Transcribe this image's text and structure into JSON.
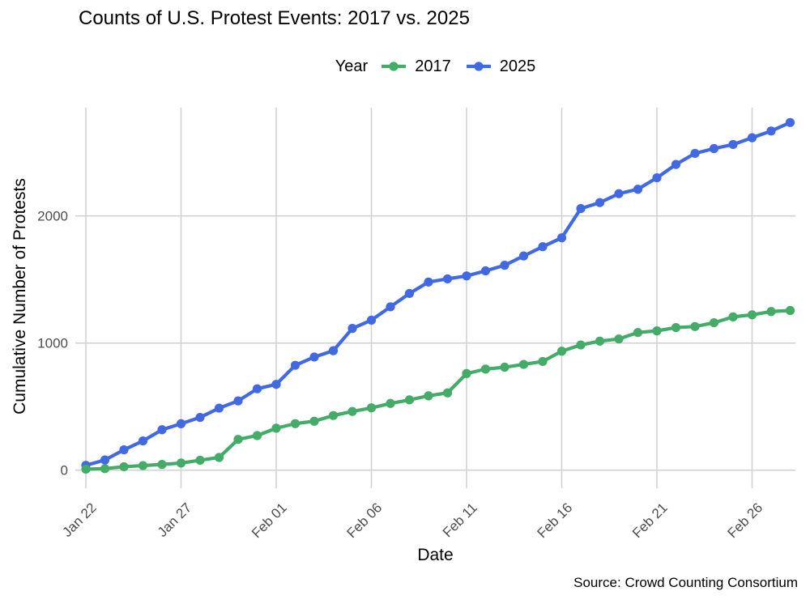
{
  "figure": {
    "title": "Counts of U.S. Protest Events: 2017 vs. 2025",
    "legend_title": "Year",
    "xlabel": "Date",
    "ylabel": "Cumulative Number of Protests",
    "caption": "Source: Crowd Counting Consortium"
  },
  "colors": {
    "series_2017": "#44ab68",
    "series_2025": "#4169e1",
    "gridline": "#d2d2d2",
    "tick_text": "#4d4d4d",
    "background": "#ffffff"
  },
  "chart_data": {
    "type": "line",
    "title": "Counts of U.S. Protest Events: 2017 vs. 2025",
    "xlabel": "Date",
    "ylabel": "Cumulative Number of Protests",
    "caption": "Source: Crowd Counting Consortium",
    "legend_title": "Year",
    "legend_position": "top",
    "grid": true,
    "points_on_line": true,
    "x": [
      "Jan 22",
      "Jan 23",
      "Jan 24",
      "Jan 25",
      "Jan 26",
      "Jan 27",
      "Jan 28",
      "Jan 29",
      "Jan 30",
      "Jan 31",
      "Feb 01",
      "Feb 02",
      "Feb 03",
      "Feb 04",
      "Feb 05",
      "Feb 06",
      "Feb 07",
      "Feb 08",
      "Feb 09",
      "Feb 10",
      "Feb 11",
      "Feb 12",
      "Feb 13",
      "Feb 14",
      "Feb 15",
      "Feb 16",
      "Feb 17",
      "Feb 18",
      "Feb 19",
      "Feb 20",
      "Feb 21",
      "Feb 22",
      "Feb 23",
      "Feb 24",
      "Feb 25",
      "Feb 26",
      "Feb 27",
      "Feb 28"
    ],
    "x_tick_labels": [
      "Jan 22",
      "Jan 27",
      "Feb 01",
      "Feb 06",
      "Feb 11",
      "Feb 16",
      "Feb 21",
      "Feb 26"
    ],
    "x_tick_indices": [
      0,
      5,
      10,
      15,
      20,
      25,
      30,
      35
    ],
    "y_ticks": [
      0,
      1000,
      2000
    ],
    "ylim": [
      -140,
      2880
    ],
    "series": [
      {
        "name": "2017",
        "color": "#44ab68",
        "values": [
          8,
          12,
          27,
          36,
          45,
          56,
          78,
          100,
          242,
          272,
          330,
          366,
          385,
          430,
          462,
          490,
          525,
          553,
          585,
          608,
          760,
          795,
          810,
          832,
          855,
          936,
          985,
          1015,
          1032,
          1083,
          1096,
          1122,
          1130,
          1160,
          1206,
          1222,
          1248,
          1256
        ]
      },
      {
        "name": "2025",
        "color": "#4169e1",
        "values": [
          38,
          80,
          160,
          230,
          318,
          365,
          415,
          488,
          545,
          640,
          675,
          825,
          890,
          940,
          1115,
          1180,
          1285,
          1390,
          1480,
          1505,
          1528,
          1568,
          1612,
          1685,
          1758,
          1828,
          2058,
          2105,
          2175,
          2210,
          2300,
          2405,
          2492,
          2530,
          2562,
          2615,
          2668,
          2735
        ]
      }
    ]
  }
}
